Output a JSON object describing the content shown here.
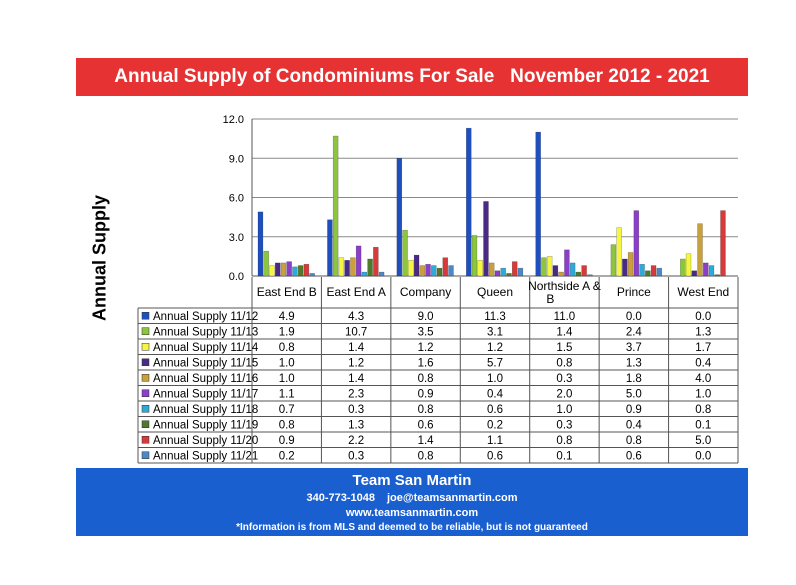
{
  "chart_data": {
    "type": "bar",
    "title": "Annual Supply of Condominiums For Sale   November 2012 - 2021",
    "ylabel": "Annual Supply",
    "xlabel": "",
    "ylim": [
      0,
      12
    ],
    "yticks": [
      "0.0",
      "3.0",
      "6.0",
      "9.0",
      "12.0"
    ],
    "grid": true,
    "legend": "table-left",
    "categories": [
      "East End B",
      "East End A",
      "Company",
      "Queen",
      "Northside A & B",
      "Prince",
      "West End"
    ],
    "series": [
      {
        "name": "Annual Supply 11/12",
        "color": "#1f4fbf",
        "values": [
          4.9,
          4.3,
          9.0,
          11.3,
          11.0,
          0.0,
          0.0
        ],
        "labels": [
          "4.9",
          "4.3",
          "9.0",
          "11.3",
          "11.0",
          "0.0",
          "0.0"
        ]
      },
      {
        "name": "Annual Supply 11/13",
        "color": "#8cc63f",
        "values": [
          1.9,
          10.7,
          3.5,
          3.1,
          1.4,
          2.4,
          1.3
        ],
        "labels": [
          "1.9",
          "10.7",
          "3.5",
          "3.1",
          "1.4",
          "2.4",
          "1.3"
        ]
      },
      {
        "name": "Annual Supply 11/14",
        "color": "#f5f542",
        "values": [
          0.8,
          1.4,
          1.2,
          1.2,
          1.5,
          3.7,
          1.7
        ],
        "labels": [
          "0.8",
          "1.4",
          "1.2",
          "1.2",
          "1.5",
          "3.7",
          "1.7"
        ]
      },
      {
        "name": "Annual Supply 11/15",
        "color": "#4b2a86",
        "values": [
          1.0,
          1.2,
          1.6,
          5.7,
          0.8,
          1.3,
          0.4
        ],
        "labels": [
          "1.0",
          "1.2",
          "1.6",
          "5.7",
          "0.8",
          "1.3",
          "0.4"
        ]
      },
      {
        "name": "Annual Supply 11/16",
        "color": "#c9a03c",
        "values": [
          1.0,
          1.4,
          0.8,
          1.0,
          0.3,
          1.8,
          4.0
        ],
        "labels": [
          "1.0",
          "1.4",
          "0.8",
          "1.0",
          "0.3",
          "1.8",
          "4.0"
        ]
      },
      {
        "name": "Annual Supply 11/17",
        "color": "#8a3fc6",
        "values": [
          1.1,
          2.3,
          0.9,
          0.4,
          2.0,
          5.0,
          1.0
        ],
        "labels": [
          "1.1",
          "2.3",
          "0.9",
          "0.4",
          "2.0",
          "5.0",
          "1.0"
        ]
      },
      {
        "name": "Annual Supply 11/18",
        "color": "#2fa9d8",
        "values": [
          0.7,
          0.3,
          0.8,
          0.6,
          1.0,
          0.9,
          0.8
        ],
        "labels": [
          "0.7",
          "0.3",
          "0.8",
          "0.6",
          "1.0",
          "0.9",
          "0.8"
        ]
      },
      {
        "name": "Annual Supply 11/19",
        "color": "#4e7a2a",
        "values": [
          0.8,
          1.3,
          0.6,
          0.2,
          0.3,
          0.4,
          0.1
        ],
        "labels": [
          "0.8",
          "1.3",
          "0.6",
          "0.2",
          "0.3",
          "0.4",
          "0.1"
        ]
      },
      {
        "name": "Annual Supply 11/20",
        "color": "#d63a3a",
        "values": [
          0.9,
          2.2,
          1.4,
          1.1,
          0.8,
          0.8,
          5.0
        ],
        "labels": [
          "0.9",
          "2.2",
          "1.4",
          "1.1",
          "0.8",
          "0.8",
          "5.0"
        ]
      },
      {
        "name": "Annual Supply 11/21",
        "color": "#4f86c6",
        "values": [
          0.2,
          0.3,
          0.8,
          0.6,
          0.1,
          0.6,
          0.0
        ],
        "labels": [
          "0.2",
          "0.3",
          "0.8",
          "0.6",
          "0.1",
          "0.6",
          "0.0"
        ]
      }
    ]
  },
  "footer": {
    "team": "Team San Martin",
    "phone": "340-773-1048",
    "email": "joe@teamsanmartin.com",
    "website": "www.teamsanmartin.com",
    "disclaimer": "*Information is from MLS and deemed to be reliable, but is not guaranteed"
  }
}
